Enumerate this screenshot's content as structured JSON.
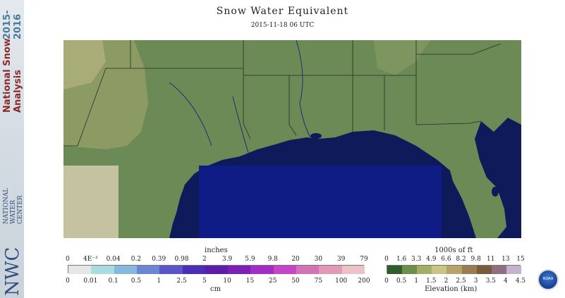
{
  "header": {
    "title": "Snow Water Equivalent",
    "timestamp": "2015-11-18 06 UTC"
  },
  "sidebar": {
    "product_line1": "National Snow",
    "product_line2": "Analysis",
    "season_line1": "2015-",
    "season_line2": "2016",
    "org_line1": "NATIONAL",
    "org_line2": "WATER",
    "org_line3": "CENTER",
    "org_logo": "NWC"
  },
  "swe_legend": {
    "unit_top": "inches",
    "unit_bottom": "cm",
    "inches_labels": [
      "0",
      "4E⁻³",
      "0.04",
      "0.2",
      "0.39",
      "0.98",
      "2",
      "3.9",
      "5.9",
      "9.8",
      "20",
      "30",
      "39",
      "79"
    ],
    "cm_labels": [
      "0",
      "0.01",
      "0.1",
      "0.5",
      "1",
      "2.5",
      "5",
      "10",
      "15",
      "25",
      "50",
      "75",
      "100",
      "200"
    ],
    "colors": [
      "#e6e6e6",
      "#a9dbe3",
      "#86b9dd",
      "#6d86d3",
      "#5a55c8",
      "#4b2db8",
      "#5c1ea8",
      "#7d1fb8",
      "#a42cc6",
      "#c544c8",
      "#d273b8",
      "#e199b6",
      "#ecc2c6"
    ]
  },
  "elevation_legend": {
    "unit_top": "1000s of ft",
    "unit_bottom": "Elevation (km)",
    "ft_labels": [
      "0",
      "1.6",
      "3.3",
      "4.9",
      "6.6",
      "8.2",
      "9.8",
      "11",
      "13",
      "15"
    ],
    "km_labels": [
      "0",
      "0.5",
      "1",
      "1.5",
      "2",
      "2.5",
      "3",
      "3.5",
      "4",
      "4.5"
    ],
    "colors": [
      "#2f5e2b",
      "#6e8f4a",
      "#a3ad66",
      "#c7c484",
      "#b9a26a",
      "#9c7b52",
      "#7a5a3d",
      "#8e6e80",
      "#c3b3cf"
    ]
  },
  "noaa_logo": "NOAA",
  "colors": {
    "land": "#6b8a55",
    "water": "#0e1a5a",
    "nodata": "#c4c2a1",
    "boundary": "#2a2a2a"
  }
}
